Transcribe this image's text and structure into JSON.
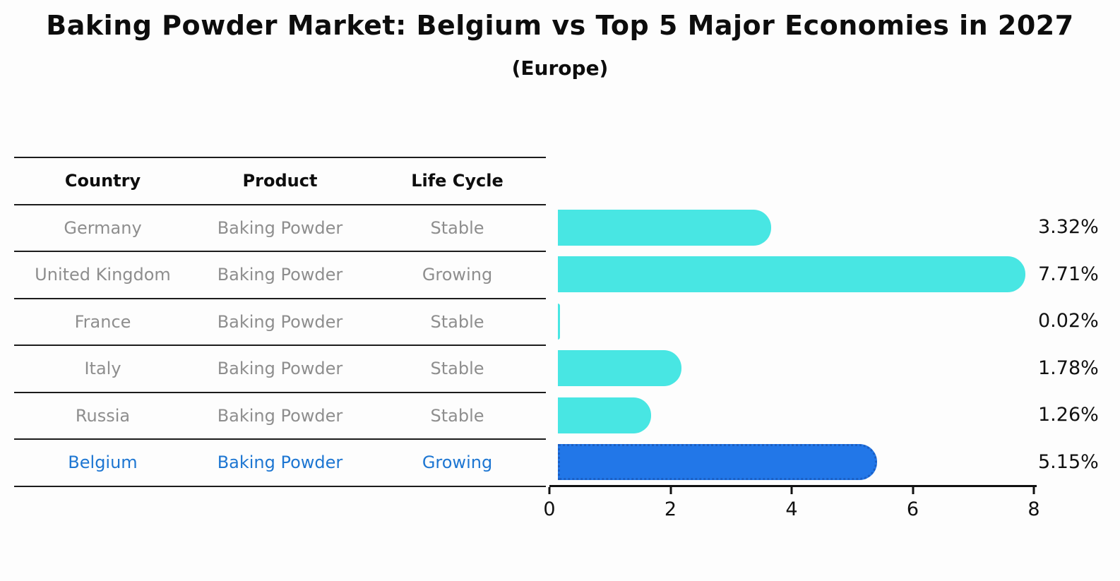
{
  "title": "Baking Powder Market: Belgium vs Top 5 Major Economies in 2027",
  "subtitle": "(Europe)",
  "chart_data": {
    "type": "bar",
    "orientation": "horizontal",
    "title": "Baking Powder Market: Belgium vs Top 5 Major Economies in 2027",
    "subtitle": "(Europe)",
    "columns": [
      "Country",
      "Product",
      "Life Cycle"
    ],
    "xlabel": "",
    "xlim": [
      0,
      8
    ],
    "x_ticks": [
      0,
      2,
      4,
      6,
      8
    ],
    "grid": false,
    "legend": "none",
    "bar_color": "#48E6E3",
    "highlight_bar_color": "#2277E8",
    "highlight_border_color": "#1b5fc4",
    "highlight_text_color": "#1D76D2",
    "rows": [
      {
        "country": "Germany",
        "product": "Baking Powder",
        "life_cycle": "Stable",
        "value": 3.32,
        "value_label": "3.32%",
        "highlight": false
      },
      {
        "country": "United Kingdom",
        "product": "Baking Powder",
        "life_cycle": "Growing",
        "value": 7.71,
        "value_label": "7.71%",
        "highlight": false
      },
      {
        "country": "France",
        "product": "Baking Powder",
        "life_cycle": "Stable",
        "value": 0.02,
        "value_label": "0.02%",
        "highlight": false
      },
      {
        "country": "Italy",
        "product": "Baking Powder",
        "life_cycle": "Stable",
        "value": 1.78,
        "value_label": "1.78%",
        "highlight": false
      },
      {
        "country": "Russia",
        "product": "Baking Powder",
        "life_cycle": "Stable",
        "value": 1.26,
        "value_label": "1.26%",
        "highlight": false
      },
      {
        "country": "Belgium",
        "product": "Baking Powder",
        "life_cycle": "Growing",
        "value": 5.15,
        "value_label": "5.15%",
        "highlight": true
      }
    ]
  }
}
